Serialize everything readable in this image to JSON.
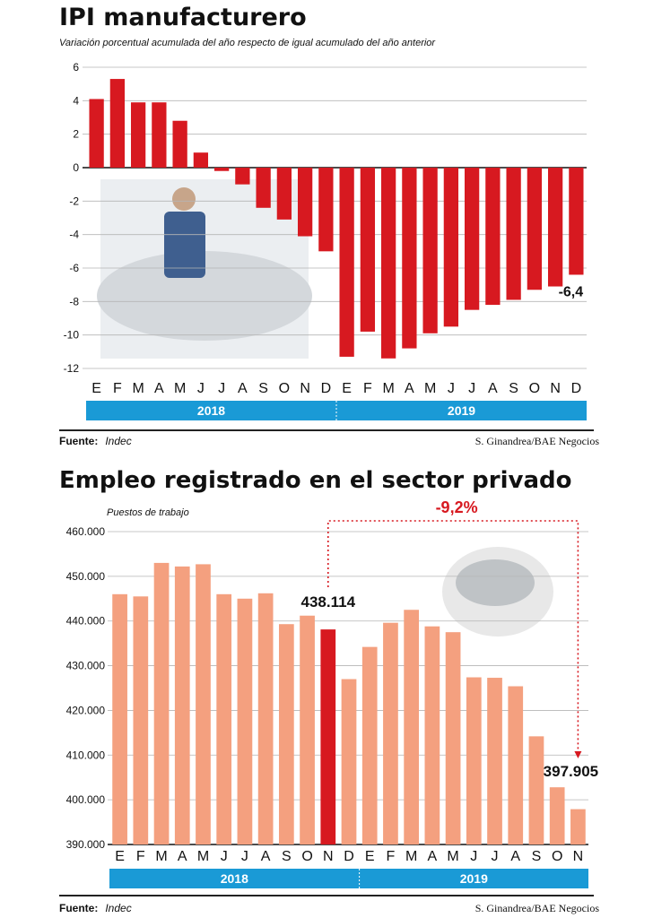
{
  "chart_data": [
    {
      "type": "bar",
      "title": "IPI manufacturero",
      "subtitle": "Variación porcentual acumulada del año respecto de igual acumulado del año anterior",
      "categories": [
        "E",
        "F",
        "M",
        "A",
        "M",
        "J",
        "J",
        "A",
        "S",
        "O",
        "N",
        "D",
        "E",
        "F",
        "M",
        "A",
        "M",
        "J",
        "J",
        "A",
        "S",
        "O",
        "N",
        "D"
      ],
      "values": [
        4.1,
        5.3,
        3.9,
        3.9,
        2.8,
        0.9,
        -0.2,
        -1.0,
        -2.4,
        -3.1,
        -4.1,
        -5.0,
        -11.3,
        -9.8,
        -11.4,
        -10.8,
        -9.9,
        -9.5,
        -8.5,
        -8.2,
        -7.9,
        -7.3,
        -7.1,
        -6.4
      ],
      "ylim": [
        -12,
        6
      ],
      "yticks": [
        "6",
        "4",
        "2",
        "0",
        "-2",
        "-4",
        "-6",
        "-8",
        "-10",
        "-12"
      ],
      "annotations": [
        "-6,4"
      ],
      "years": [
        "2018",
        "2019"
      ],
      "source_label": "Fuente:",
      "source": "Indec",
      "credit": "S. Ginandrea/BAE Negocios",
      "bar_color": "#d71920",
      "year_band_color": "#1a9ad6"
    },
    {
      "type": "bar",
      "title": "Empleo registrado en el sector privado",
      "ylabel": "Puestos de trabajo",
      "categories": [
        "E",
        "F",
        "M",
        "A",
        "M",
        "J",
        "J",
        "A",
        "S",
        "O",
        "N",
        "D",
        "E",
        "F",
        "M",
        "A",
        "M",
        "J",
        "J",
        "A",
        "S",
        "O",
        "N"
      ],
      "values": [
        446000,
        445500,
        453000,
        452200,
        452700,
        446000,
        445000,
        446200,
        439300,
        441200,
        438114,
        427000,
        434200,
        439600,
        442500,
        438800,
        437500,
        427400,
        427300,
        425400,
        414200,
        402800,
        397905
      ],
      "highlight_index": 10,
      "ylim": [
        390000,
        460000
      ],
      "yticks": [
        "460.000",
        "450.000",
        "440.000",
        "430.000",
        "420.000",
        "410.000",
        "400.000",
        "390.000"
      ],
      "annotations": [
        "438.114",
        "397.905"
      ],
      "change_label": "-9,2%",
      "years": [
        "2018",
        "2019"
      ],
      "source_label": "Fuente:",
      "source": "Indec",
      "credit": "S. Ginandrea/BAE Negocios",
      "bar_color": "#f4a07f",
      "highlight_color": "#d71920",
      "year_band_color": "#1a9ad6"
    }
  ]
}
